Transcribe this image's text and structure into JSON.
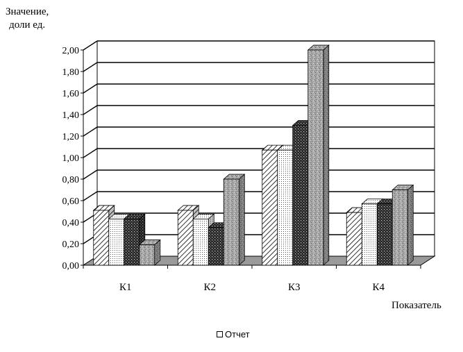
{
  "chart_data": {
    "type": "bar",
    "title": "",
    "ylabel_line1": "Значение,",
    "ylabel_line2": "доли ед.",
    "xlabel": "Показатель",
    "categories": [
      "К1",
      "К2",
      "К3",
      "К4"
    ],
    "ylim": [
      0,
      2
    ],
    "yticks": [
      "0,00",
      "0,20",
      "0,40",
      "0,60",
      "0,80",
      "1,00",
      "1,20",
      "1,40",
      "1,60",
      "1,80",
      "2,00"
    ],
    "grid": true,
    "legend": {
      "position": "bottom",
      "entries": [
        "Отчет"
      ]
    },
    "series": [
      {
        "pattern": "diagonal-hatch",
        "values": [
          0.51,
          0.51,
          1.07,
          0.49
        ]
      },
      {
        "pattern": "fine-dots",
        "values": [
          0.43,
          0.43,
          1.07,
          0.57
        ]
      },
      {
        "pattern": "dark-crosshatch",
        "values": [
          0.43,
          0.35,
          1.3,
          0.57
        ]
      },
      {
        "pattern": "grey-speckle",
        "values": [
          0.19,
          0.8,
          2.0,
          0.7
        ]
      }
    ],
    "colors": {
      "floor": "#9a9a9a",
      "wall": "#ffffff",
      "grid": "#000000"
    }
  }
}
